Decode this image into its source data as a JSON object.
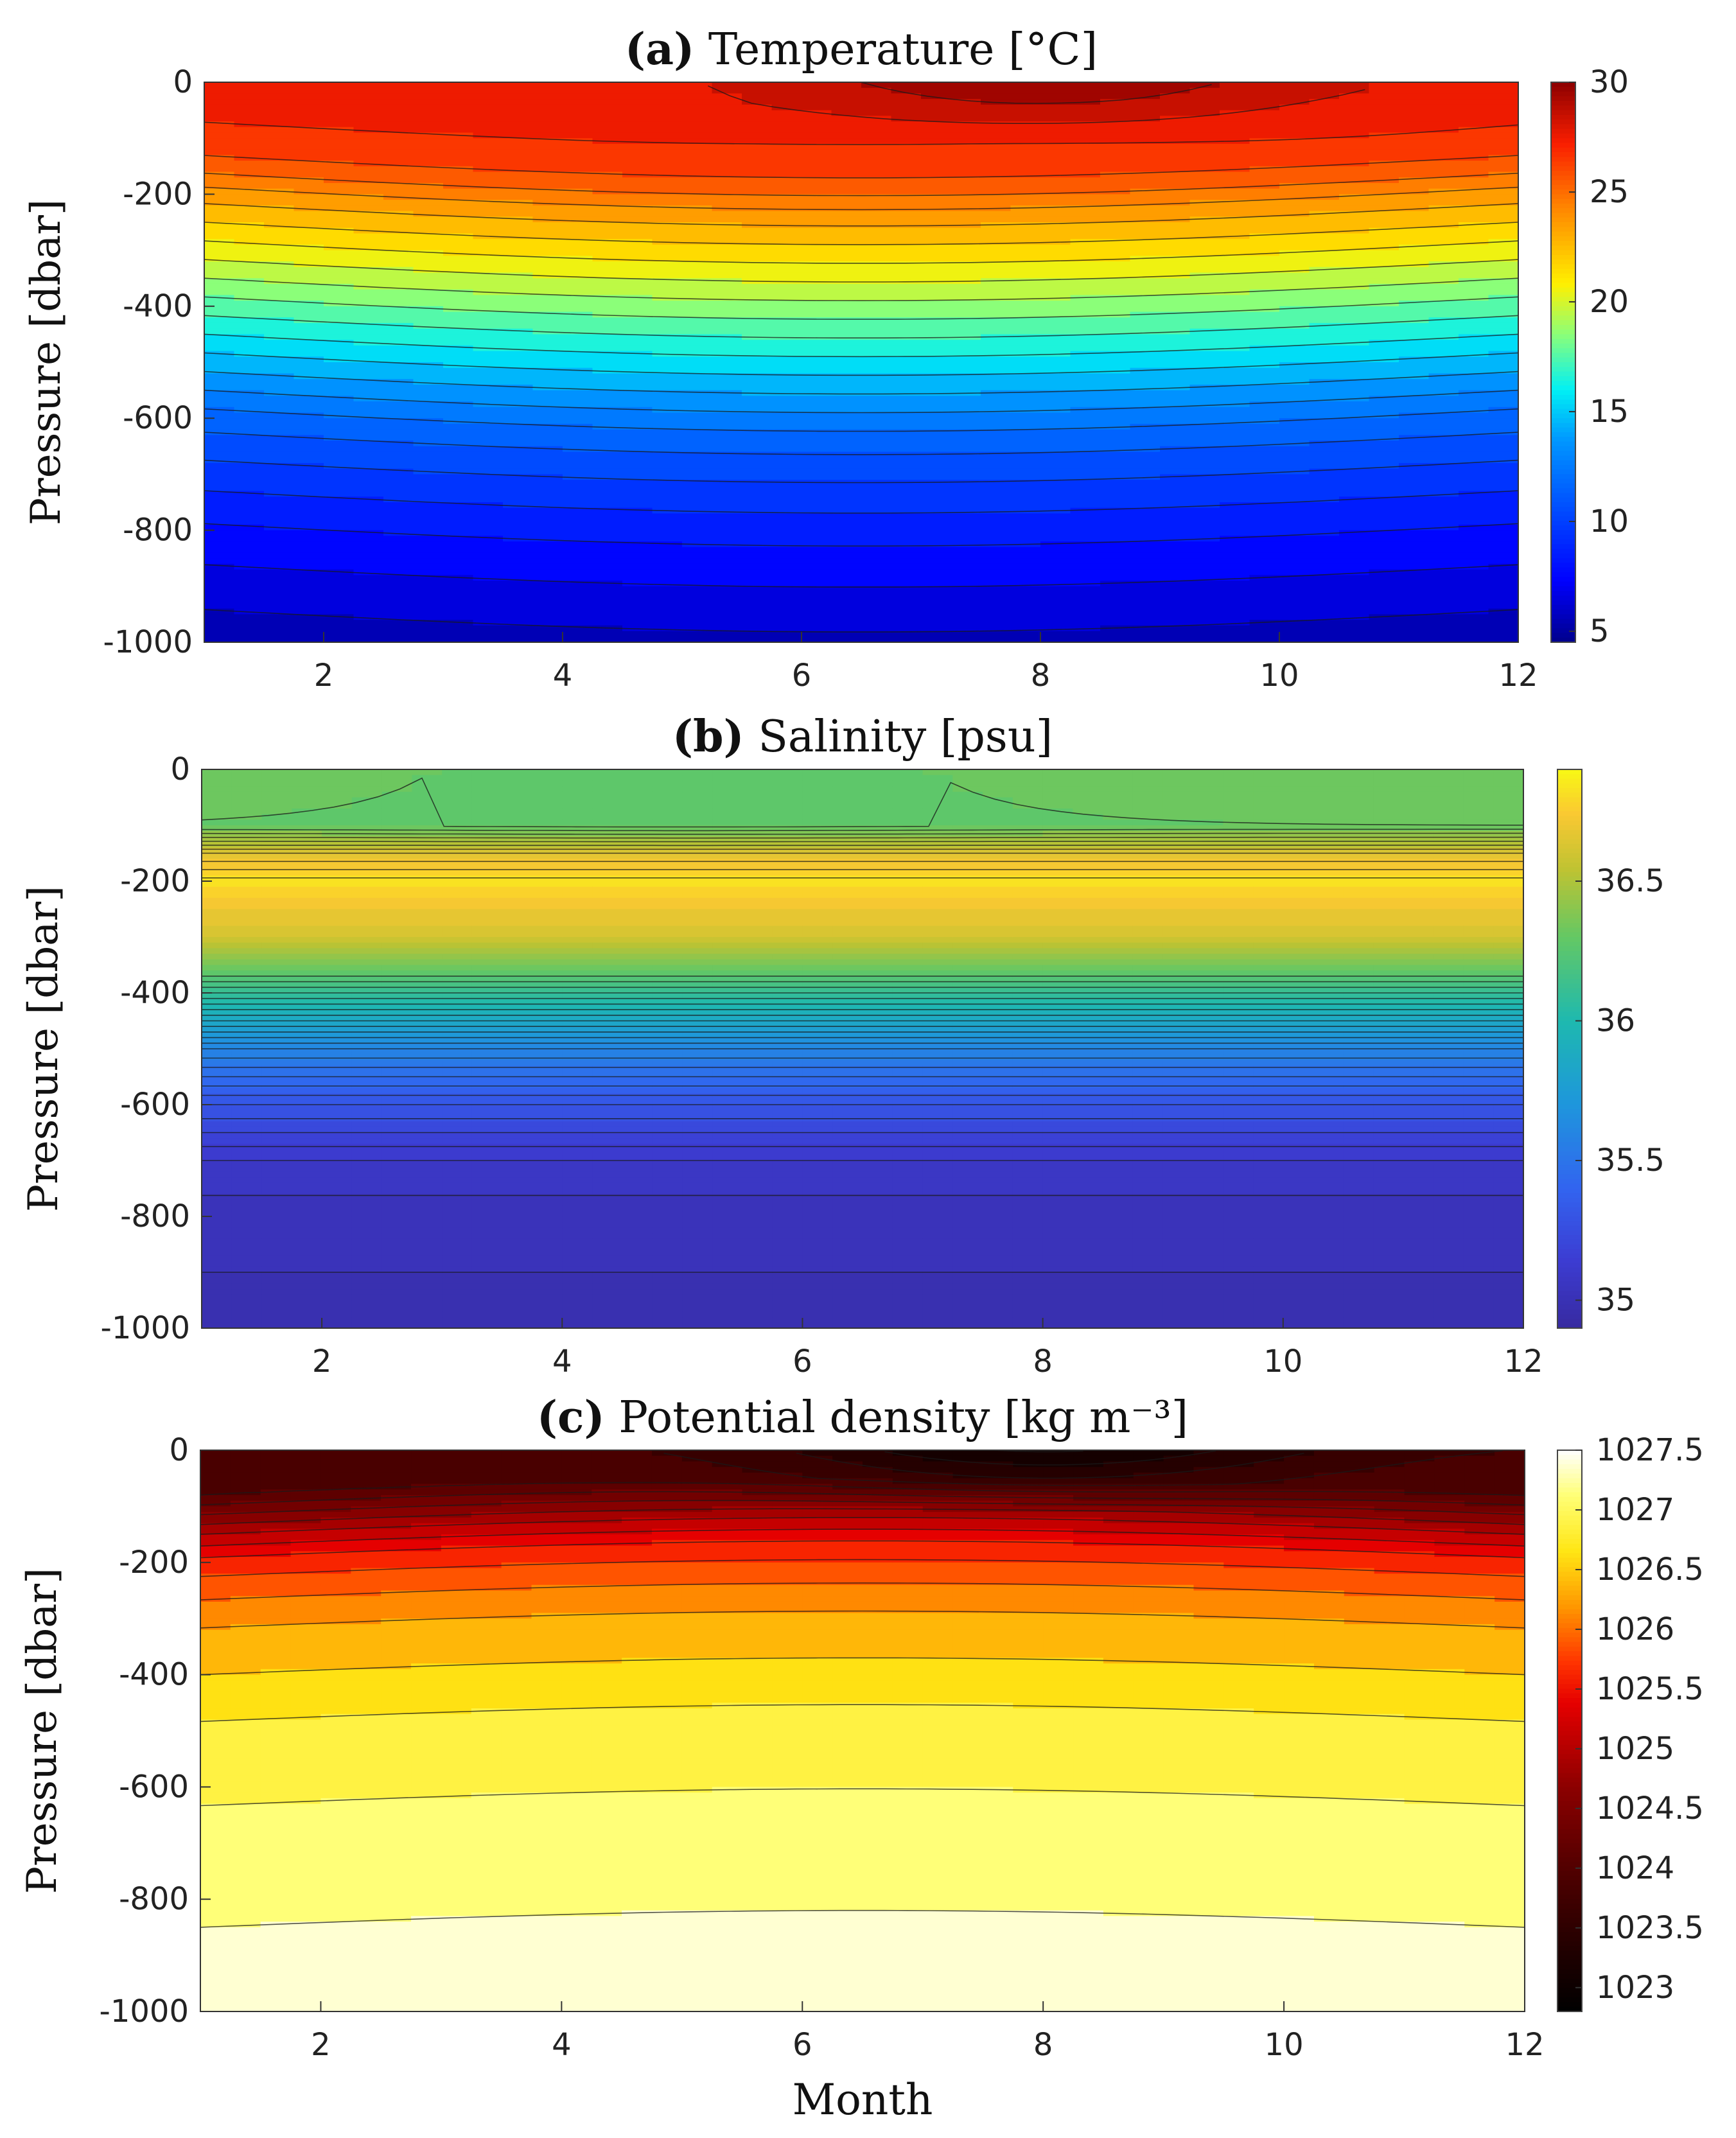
{
  "chart_data": [
    {
      "type": "heatmap",
      "panel": "a",
      "title_bold": "(a)",
      "title": "Temperature [°C]",
      "xlabel": "",
      "ylabel": "Pressure [dbar]",
      "xlim": [
        1,
        12
      ],
      "ylim": [
        -1000,
        0
      ],
      "x_ticks": [
        "2",
        "4",
        "6",
        "8",
        "10",
        "12"
      ],
      "y_ticks": [
        "0",
        "-200",
        "-400",
        "-600",
        "-800",
        "-1000"
      ],
      "colorbar": {
        "range": [
          4.5,
          30
        ],
        "ticks": [
          "30",
          "25",
          "20",
          "15",
          "10",
          "5"
        ],
        "colormap": "jet"
      },
      "profile": [
        {
          "p": 0,
          "v": 27.5
        },
        {
          "p": -100,
          "v": 26.8
        },
        {
          "p": -150,
          "v": 25.5
        },
        {
          "p": -200,
          "v": 23.5
        },
        {
          "p": -300,
          "v": 20.5
        },
        {
          "p": -400,
          "v": 17.5
        },
        {
          "p": -500,
          "v": 14.5
        },
        {
          "p": -600,
          "v": 11.5
        },
        {
          "p": -700,
          "v": 9.5
        },
        {
          "p": -800,
          "v": 7.8
        },
        {
          "p": -900,
          "v": 6.5
        },
        {
          "p": -1000,
          "v": 5.3
        }
      ],
      "surface_summer_peak": 29.8,
      "seasonal_depth_shift_dbar": -40,
      "contour_interval": 1
    },
    {
      "type": "heatmap",
      "panel": "b",
      "title_bold": "(b)",
      "title": "Salinity [psu]",
      "xlabel": "",
      "ylabel": "Pressure [dbar]",
      "xlim": [
        1,
        12
      ],
      "ylim": [
        -1000,
        0
      ],
      "x_ticks": [
        "2",
        "4",
        "6",
        "8",
        "10",
        "12"
      ],
      "y_ticks": [
        "0",
        "-200",
        "-400",
        "-600",
        "-800",
        "-1000"
      ],
      "colorbar": {
        "range": [
          34.9,
          36.9
        ],
        "ticks": [
          "36.5",
          "36",
          "35.5",
          "35"
        ],
        "colormap": "parula"
      },
      "profile": [
        {
          "p": 0,
          "v": 36.35
        },
        {
          "p": -100,
          "v": 36.3
        },
        {
          "p": -150,
          "v": 36.65
        },
        {
          "p": -200,
          "v": 36.82
        },
        {
          "p": -300,
          "v": 36.6
        },
        {
          "p": -400,
          "v": 36.1
        },
        {
          "p": -500,
          "v": 35.6
        },
        {
          "p": -600,
          "v": 35.3
        },
        {
          "p": -700,
          "v": 35.1
        },
        {
          "p": -800,
          "v": 35.02
        },
        {
          "p": -1000,
          "v": 34.98
        }
      ],
      "contour_interval": 0.05
    },
    {
      "type": "heatmap",
      "panel": "c",
      "title_bold": "(c)",
      "title": "Potential density [kg m⁻³]",
      "xlabel": "Month",
      "ylabel": "Pressure [dbar]",
      "xlim": [
        1,
        12
      ],
      "ylim": [
        -1000,
        0
      ],
      "x_ticks": [
        "2",
        "4",
        "6",
        "8",
        "10",
        "12"
      ],
      "y_ticks": [
        "0",
        "-200",
        "-400",
        "-600",
        "-800",
        "-1000"
      ],
      "colorbar": {
        "range": [
          1022.8,
          1027.5
        ],
        "ticks": [
          "1027.5",
          "1027",
          "1026.5",
          "1026",
          "1025.5",
          "1025",
          "1024.5",
          "1024",
          "1023.5",
          "1023"
        ],
        "colormap": "hot"
      },
      "profile": [
        {
          "p": 0,
          "v": 1023.8
        },
        {
          "p": -80,
          "v": 1024.0
        },
        {
          "p": -150,
          "v": 1025.0
        },
        {
          "p": -200,
          "v": 1025.6
        },
        {
          "p": -300,
          "v": 1026.2
        },
        {
          "p": -400,
          "v": 1026.5
        },
        {
          "p": -500,
          "v": 1026.8
        },
        {
          "p": -600,
          "v": 1026.95
        },
        {
          "p": -700,
          "v": 1027.1
        },
        {
          "p": -800,
          "v": 1027.2
        },
        {
          "p": -900,
          "v": 1027.3
        },
        {
          "p": -1000,
          "v": 1027.45
        }
      ],
      "surface_summer_min": 1022.9,
      "contour_interval": 0.25
    }
  ]
}
